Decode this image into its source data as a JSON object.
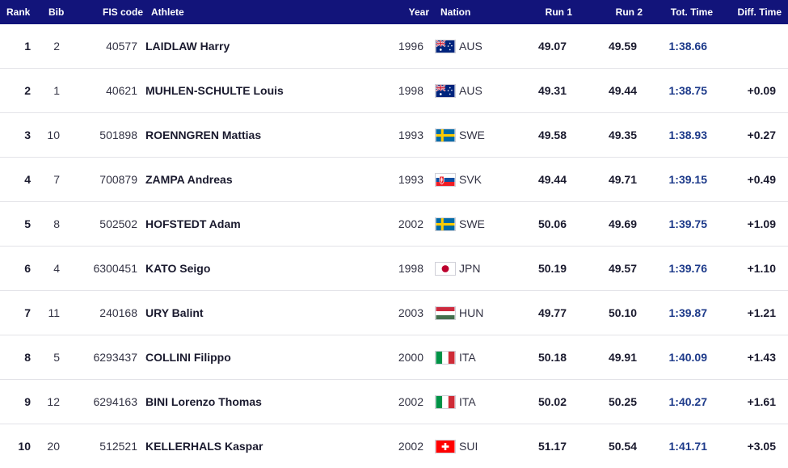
{
  "columns": {
    "rank": "Rank",
    "bib": "Bib",
    "fis": "FIS code",
    "athlete": "Athlete",
    "year": "Year",
    "nation": "Nation",
    "run1": "Run 1",
    "run2": "Run 2",
    "total": "Tot. Time",
    "diff": "Diff. Time"
  },
  "colors": {
    "header_bg": "#12147a",
    "total_time": "#1d3a8a"
  },
  "rows": [
    {
      "rank": "1",
      "bib": "2",
      "fis": "40577",
      "athlete": "LAIDLAW Harry",
      "year": "1996",
      "nation": "AUS",
      "flag": "australia-flag-icon",
      "run1": "49.07",
      "run2": "49.59",
      "total": "1:38.66",
      "diff": ""
    },
    {
      "rank": "2",
      "bib": "1",
      "fis": "40621",
      "athlete": "MUHLEN-SCHULTE Louis",
      "year": "1998",
      "nation": "AUS",
      "flag": "australia-flag-icon",
      "run1": "49.31",
      "run2": "49.44",
      "total": "1:38.75",
      "diff": "+0.09"
    },
    {
      "rank": "3",
      "bib": "10",
      "fis": "501898",
      "athlete": "ROENNGREN Mattias",
      "year": "1993",
      "nation": "SWE",
      "flag": "sweden-flag-icon",
      "run1": "49.58",
      "run2": "49.35",
      "total": "1:38.93",
      "diff": "+0.27"
    },
    {
      "rank": "4",
      "bib": "7",
      "fis": "700879",
      "athlete": "ZAMPA Andreas",
      "year": "1993",
      "nation": "SVK",
      "flag": "slovakia-flag-icon",
      "run1": "49.44",
      "run2": "49.71",
      "total": "1:39.15",
      "diff": "+0.49"
    },
    {
      "rank": "5",
      "bib": "8",
      "fis": "502502",
      "athlete": "HOFSTEDT Adam",
      "year": "2002",
      "nation": "SWE",
      "flag": "sweden-flag-icon",
      "run1": "50.06",
      "run2": "49.69",
      "total": "1:39.75",
      "diff": "+1.09"
    },
    {
      "rank": "6",
      "bib": "4",
      "fis": "6300451",
      "athlete": "KATO Seigo",
      "year": "1998",
      "nation": "JPN",
      "flag": "japan-flag-icon",
      "run1": "50.19",
      "run2": "49.57",
      "total": "1:39.76",
      "diff": "+1.10"
    },
    {
      "rank": "7",
      "bib": "11",
      "fis": "240168",
      "athlete": "URY Balint",
      "year": "2003",
      "nation": "HUN",
      "flag": "hungary-flag-icon",
      "run1": "49.77",
      "run2": "50.10",
      "total": "1:39.87",
      "diff": "+1.21"
    },
    {
      "rank": "8",
      "bib": "5",
      "fis": "6293437",
      "athlete": "COLLINI Filippo",
      "year": "2000",
      "nation": "ITA",
      "flag": "italy-flag-icon",
      "run1": "50.18",
      "run2": "49.91",
      "total": "1:40.09",
      "diff": "+1.43"
    },
    {
      "rank": "9",
      "bib": "12",
      "fis": "6294163",
      "athlete": "BINI Lorenzo Thomas",
      "year": "2002",
      "nation": "ITA",
      "flag": "italy-flag-icon",
      "run1": "50.02",
      "run2": "50.25",
      "total": "1:40.27",
      "diff": "+1.61"
    },
    {
      "rank": "10",
      "bib": "20",
      "fis": "512521",
      "athlete": "KELLERHALS Kaspar",
      "year": "2002",
      "nation": "SUI",
      "flag": "switzerland-flag-icon",
      "run1": "51.17",
      "run2": "50.54",
      "total": "1:41.71",
      "diff": "+3.05"
    }
  ]
}
